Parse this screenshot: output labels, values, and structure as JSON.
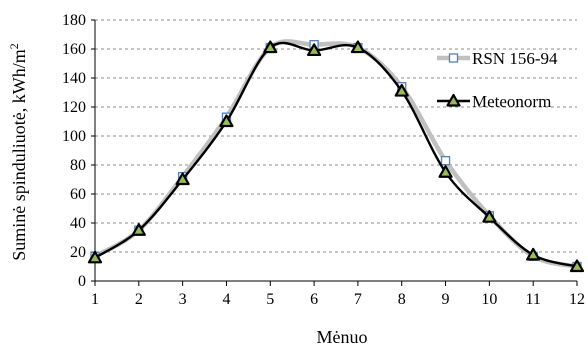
{
  "chart_data": {
    "type": "line",
    "title": "",
    "xlabel": "Mėnuo",
    "ylabel": "Suminė spinduliuotė,  kWh/m",
    "ylabel_superscript": "2",
    "xlim": [
      1,
      12
    ],
    "ylim": [
      0,
      180
    ],
    "x_ticks": [
      1,
      2,
      3,
      4,
      5,
      6,
      7,
      8,
      9,
      10,
      11,
      12
    ],
    "y_ticks": [
      0,
      20,
      40,
      60,
      80,
      100,
      120,
      140,
      160,
      180
    ],
    "grid": "horizontal dashed",
    "legend_position": "right",
    "x": [
      1,
      2,
      3,
      4,
      5,
      6,
      7,
      8,
      9,
      10,
      11,
      12
    ],
    "series": [
      {
        "name": "RSN 156-94",
        "values": [
          17,
          35,
          72,
          113,
          161,
          163,
          161,
          134,
          83,
          45,
          17,
          10
        ],
        "line_color": "#c0c0c0",
        "marker": "open-square",
        "marker_color": "#4f81bd"
      },
      {
        "name": "Meteonorm",
        "values": [
          16,
          35,
          70,
          110,
          161,
          159,
          161,
          131,
          75,
          44,
          18,
          10
        ],
        "line_color": "#000000",
        "marker": "filled-triangle",
        "marker_color": "#000000",
        "marker_fill": "#9bbb59"
      }
    ]
  }
}
